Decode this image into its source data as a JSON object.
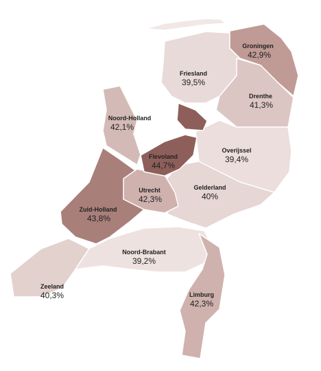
{
  "regions": [
    {
      "name": "Groningen",
      "value": 42.9,
      "value_label": "42,9%",
      "color": "#c09a95"
    },
    {
      "name": "Friesland",
      "value": 39.5,
      "value_label": "39,5%",
      "color": "#e8dad8"
    },
    {
      "name": "Drenthe",
      "value": 41.3,
      "value_label": "41,3%",
      "color": "#dcc6c3"
    },
    {
      "name": "Noord-Holland",
      "value": 42.1,
      "value_label": "42,1%",
      "color": "#d4bab6"
    },
    {
      "name": "Flevoland",
      "value": 44.7,
      "value_label": "44,7%",
      "color": "#8e5f5a"
    },
    {
      "name": "Overijssel",
      "value": 39.4,
      "value_label": "39,4%",
      "color": "#ebdedc"
    },
    {
      "name": "Utrecht",
      "value": 42.3,
      "value_label": "42,3%",
      "color": "#cfb1ad"
    },
    {
      "name": "Gelderland",
      "value": 40,
      "value_label": "40%",
      "color": "#e6d6d4"
    },
    {
      "name": "Zuid-Holland",
      "value": 43.8,
      "value_label": "43,8%",
      "color": "#a97f7a"
    },
    {
      "name": "Noord-Brabant",
      "value": 39.2,
      "value_label": "39,2%",
      "color": "#ede2e0"
    },
    {
      "name": "Zeeland",
      "value": 40.3,
      "value_label": "40,3%",
      "color": "#e3d1ce"
    },
    {
      "name": "Limburg",
      "value": 42.3,
      "value_label": "42,3%",
      "color": "#cfb1ad"
    }
  ]
}
